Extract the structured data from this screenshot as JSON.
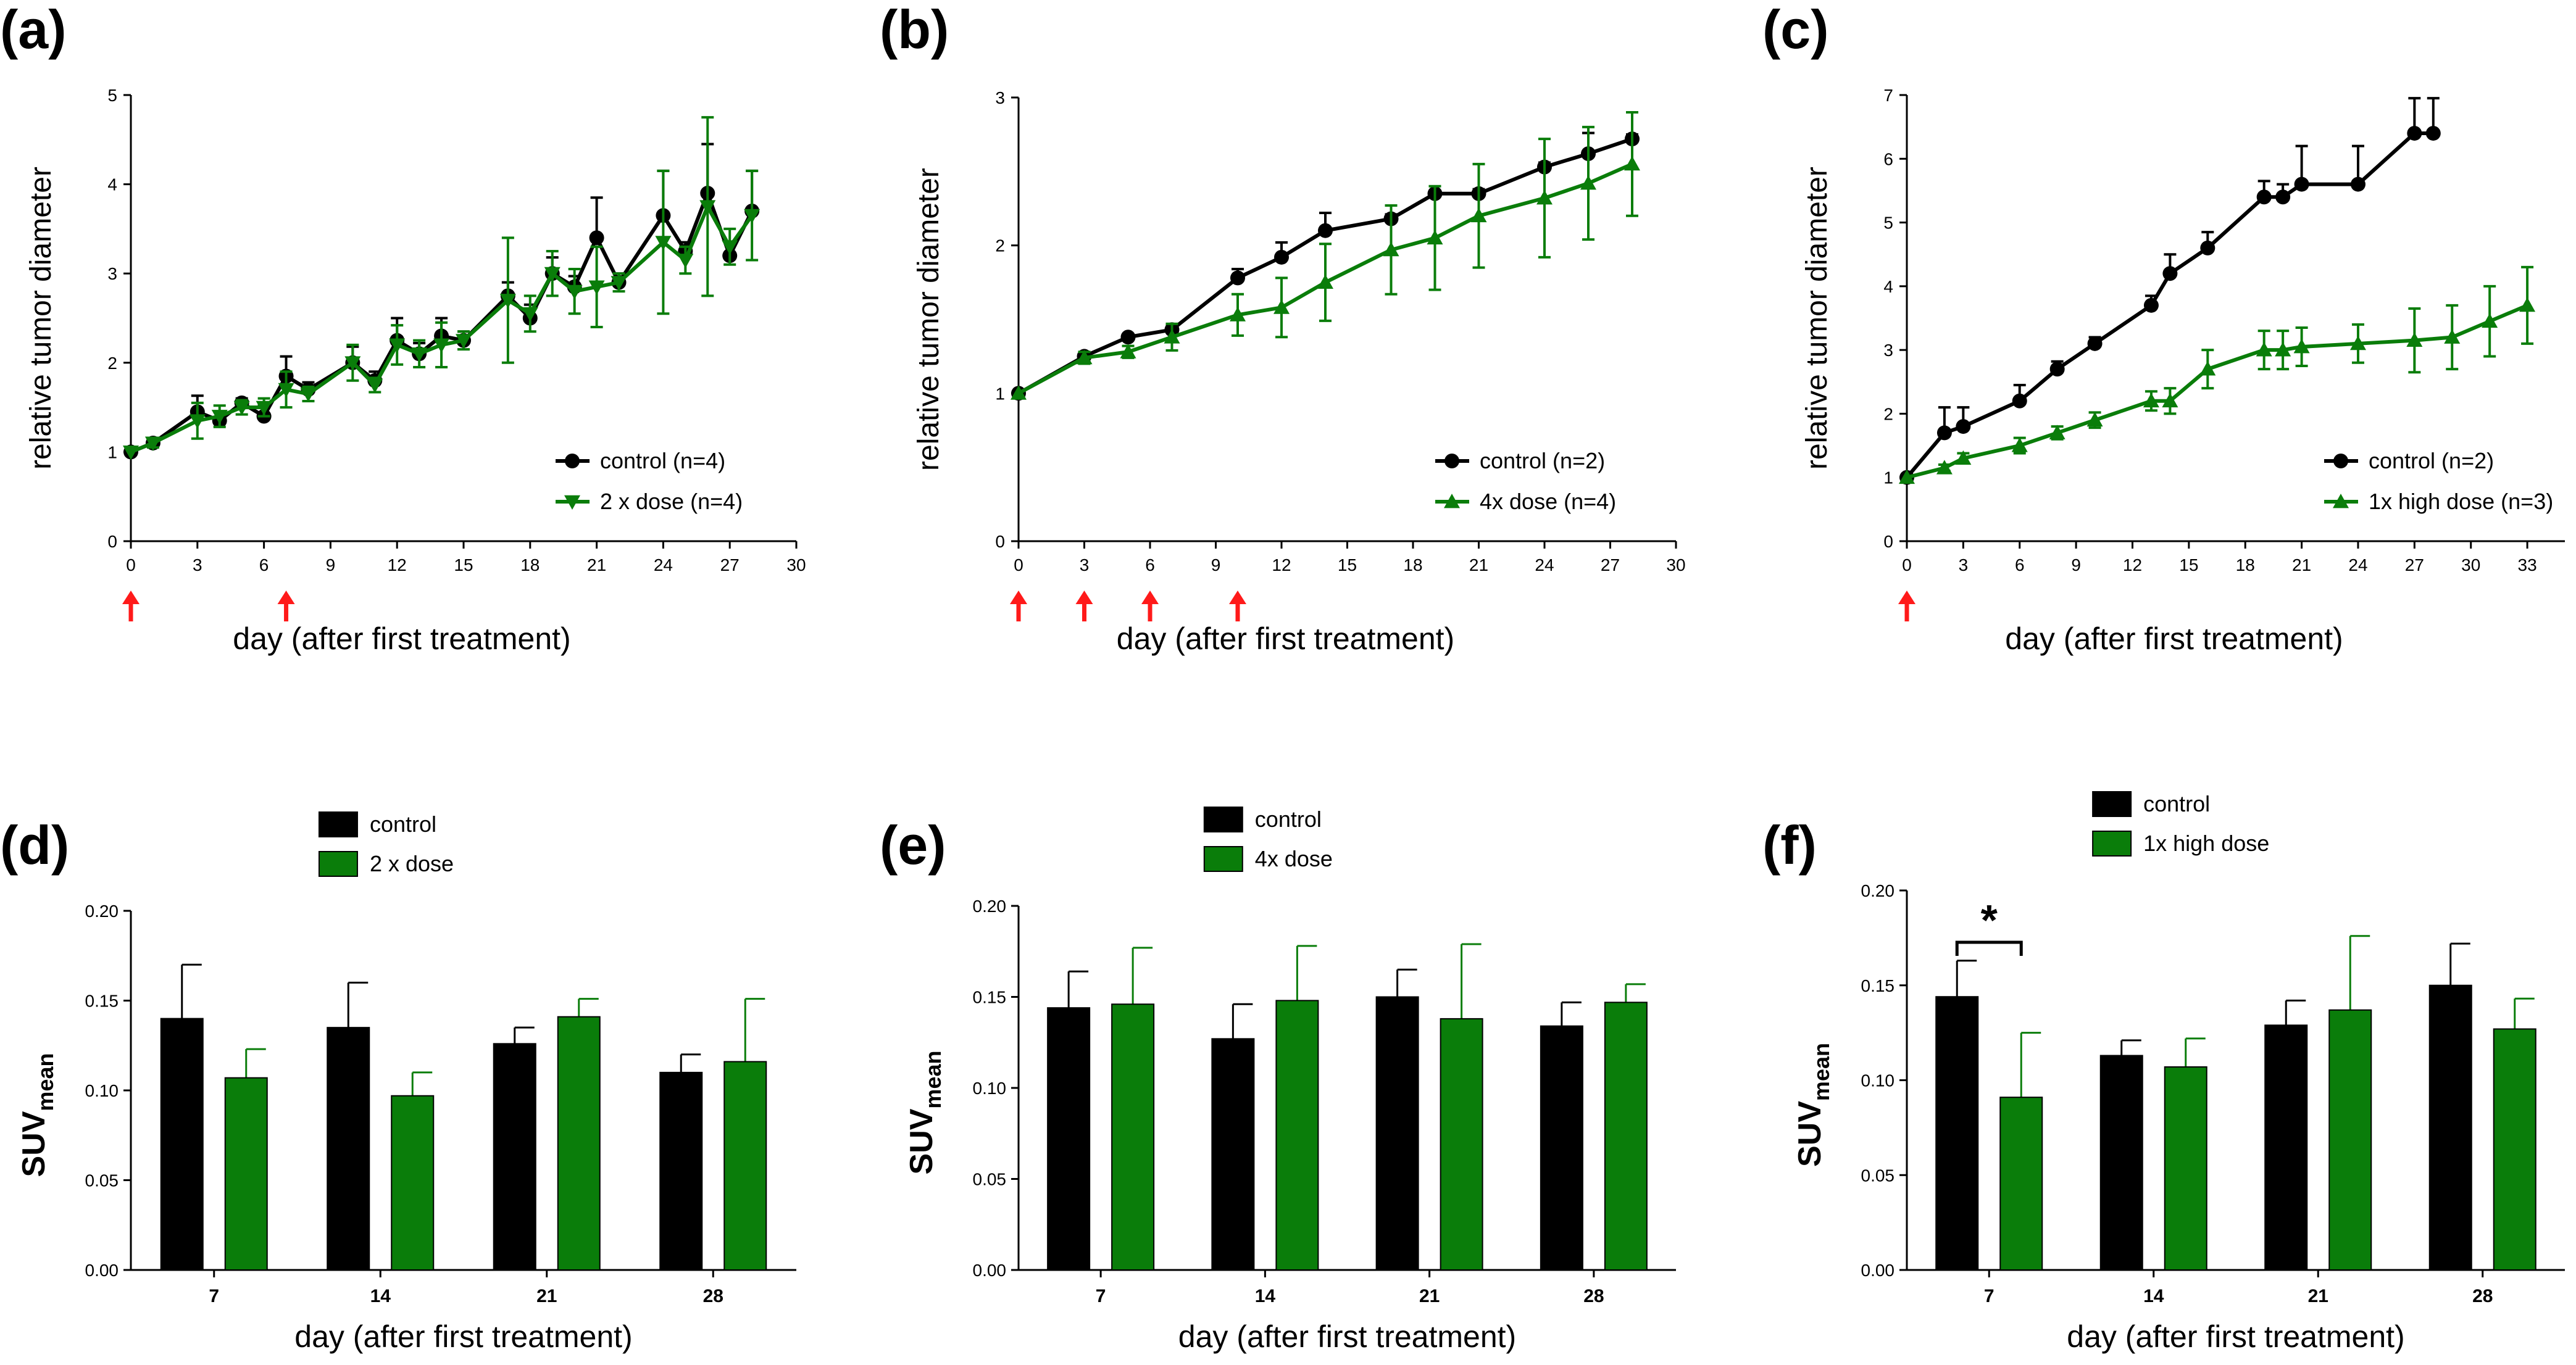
{
  "colors": {
    "control": "#000000",
    "treatment": "#0a7d0a",
    "arrow": "#ff1a1a"
  },
  "chart_data": [
    {
      "id": "a",
      "label": "(a)",
      "type": "line",
      "ylabel": "relative tumor diameter",
      "xlabel": "day (after first treatment)",
      "xlim": [
        0,
        30
      ],
      "ylim": [
        0,
        5
      ],
      "xticks": [
        0,
        3,
        6,
        9,
        12,
        15,
        18,
        21,
        24,
        27,
        30
      ],
      "yticks": [
        0,
        1,
        2,
        3,
        4,
        5
      ],
      "treatment_days": [
        0,
        7
      ],
      "legend_position": "bottom-right",
      "series": [
        {
          "name": "control (n=4)",
          "marker": "circle",
          "color_key": "control",
          "x": [
            0,
            1,
            3,
            4,
            5,
            6,
            7,
            8,
            10,
            11,
            12,
            13,
            14,
            15,
            17,
            18,
            19,
            20,
            21,
            22,
            24,
            25,
            26,
            27,
            28
          ],
          "y": [
            1.0,
            1.1,
            1.45,
            1.35,
            1.55,
            1.4,
            1.85,
            1.7,
            2.0,
            1.8,
            2.25,
            2.1,
            2.3,
            2.25,
            2.75,
            2.5,
            3.0,
            2.85,
            3.4,
            2.9,
            3.65,
            3.25,
            3.9,
            3.2,
            3.7
          ],
          "err": [
            0.0,
            0.03,
            0.18,
            0.1,
            0.05,
            0.12,
            0.22,
            0.08,
            0.18,
            0.1,
            0.25,
            0.12,
            0.2,
            0.1,
            0.15,
            0.15,
            0.18,
            0.12,
            0.45,
            0.1,
            0.5,
            0.1,
            0.55,
            0.15,
            0.45
          ]
        },
        {
          "name": "2 x dose (n=4)",
          "marker": "triangle-down",
          "color_key": "treatment",
          "x": [
            0,
            1,
            3,
            4,
            5,
            6,
            7,
            8,
            10,
            11,
            12,
            13,
            14,
            15,
            17,
            18,
            19,
            20,
            21,
            22,
            24,
            25,
            26,
            27,
            28
          ],
          "y": [
            1.0,
            1.1,
            1.35,
            1.4,
            1.5,
            1.5,
            1.7,
            1.65,
            2.0,
            1.75,
            2.2,
            2.1,
            2.2,
            2.25,
            2.7,
            2.55,
            3.0,
            2.8,
            2.85,
            2.9,
            3.35,
            3.15,
            3.75,
            3.3,
            3.65
          ],
          "err": [
            0.0,
            0.05,
            0.2,
            0.12,
            0.08,
            0.1,
            0.2,
            0.08,
            0.2,
            0.08,
            0.22,
            0.15,
            0.25,
            0.1,
            0.7,
            0.2,
            0.25,
            0.25,
            0.45,
            0.1,
            0.8,
            0.15,
            1.0,
            0.2,
            0.5
          ]
        }
      ]
    },
    {
      "id": "b",
      "label": "(b)",
      "type": "line",
      "ylabel": "relative tumor diameter",
      "xlabel": "day (after first treatment)",
      "xlim": [
        0,
        30
      ],
      "ylim": [
        0,
        3
      ],
      "xticks": [
        0,
        3,
        6,
        9,
        12,
        15,
        18,
        21,
        24,
        27,
        30
      ],
      "yticks": [
        0,
        1,
        2,
        3
      ],
      "treatment_days": [
        0,
        3,
        6,
        10
      ],
      "legend_position": "bottom-right",
      "series": [
        {
          "name": "control (n=2)",
          "marker": "circle",
          "color_key": "control",
          "x": [
            0,
            3,
            5,
            7,
            10,
            12,
            14,
            17,
            19,
            21,
            24,
            26,
            28
          ],
          "y": [
            1.0,
            1.25,
            1.38,
            1.43,
            1.78,
            1.92,
            2.1,
            2.18,
            2.35,
            2.35,
            2.53,
            2.62,
            2.72
          ],
          "err": [
            0.0,
            0.02,
            0.02,
            0.03,
            0.06,
            0.1,
            0.12,
            0.03,
            0.02,
            0.03,
            0.03,
            0.14,
            0.03
          ]
        },
        {
          "name": "4x dose (n=4)",
          "marker": "triangle-up",
          "color_key": "treatment",
          "x": [
            0,
            3,
            5,
            7,
            10,
            12,
            14,
            17,
            19,
            21,
            24,
            26,
            28
          ],
          "y": [
            1.0,
            1.24,
            1.28,
            1.38,
            1.53,
            1.58,
            1.75,
            1.97,
            2.05,
            2.2,
            2.32,
            2.42,
            2.55
          ],
          "err": [
            0.0,
            0.04,
            0.04,
            0.09,
            0.14,
            0.2,
            0.26,
            0.3,
            0.35,
            0.35,
            0.4,
            0.38,
            0.35
          ]
        }
      ]
    },
    {
      "id": "c",
      "label": "(c)",
      "type": "line",
      "ylabel": "relative tumor diameter",
      "xlabel": "day (after first treatment)",
      "xlim": [
        0,
        35
      ],
      "ylim": [
        0,
        7
      ],
      "xticks": [
        0,
        3,
        6,
        9,
        12,
        15,
        18,
        21,
        24,
        27,
        30,
        33
      ],
      "yticks": [
        0,
        1,
        2,
        3,
        4,
        5,
        6,
        7
      ],
      "treatment_days": [
        0
      ],
      "legend_position": "bottom-right",
      "series": [
        {
          "name": "control (n=2)",
          "marker": "circle",
          "color_key": "control",
          "x": [
            0,
            2,
            3,
            6,
            8,
            10,
            13,
            14,
            16,
            19,
            20,
            21,
            24,
            27,
            28
          ],
          "y": [
            1.0,
            1.7,
            1.8,
            2.2,
            2.7,
            3.1,
            3.7,
            4.2,
            4.6,
            5.4,
            5.4,
            5.6,
            5.6,
            6.4,
            6.4
          ],
          "err": [
            0.0,
            0.4,
            0.3,
            0.25,
            0.12,
            0.1,
            0.15,
            0.3,
            0.25,
            0.25,
            0.2,
            0.6,
            0.6,
            0.55,
            0.55
          ]
        },
        {
          "name": "1x high dose (n=3)",
          "marker": "triangle-up",
          "color_key": "treatment",
          "x": [
            0,
            2,
            3,
            6,
            8,
            10,
            13,
            14,
            16,
            19,
            20,
            21,
            24,
            27,
            29,
            31,
            33
          ],
          "y": [
            1.0,
            1.15,
            1.3,
            1.5,
            1.7,
            1.9,
            2.2,
            2.2,
            2.7,
            3.0,
            3.0,
            3.05,
            3.1,
            3.15,
            3.2,
            3.45,
            3.7
          ],
          "err": [
            0.0,
            0.05,
            0.08,
            0.12,
            0.1,
            0.12,
            0.15,
            0.2,
            0.3,
            0.3,
            0.3,
            0.3,
            0.3,
            0.5,
            0.5,
            0.55,
            0.6
          ]
        }
      ]
    },
    {
      "id": "d",
      "label": "(d)",
      "type": "bar",
      "ylabel_main": "SUV",
      "ylabel_sub": "mean",
      "xlabel": "day (after first treatment)",
      "categories": [
        "7",
        "14",
        "21",
        "28"
      ],
      "ylim": [
        0,
        0.2
      ],
      "yticks": [
        "0.00",
        "0.05",
        "0.10",
        "0.15",
        "0.20"
      ],
      "legend_position": "top-center",
      "series": [
        {
          "name": "control",
          "color_key": "control",
          "values": [
            0.14,
            0.135,
            0.126,
            0.11
          ],
          "err": [
            0.03,
            0.025,
            0.009,
            0.01
          ]
        },
        {
          "name": "2 x dose",
          "color_key": "treatment",
          "values": [
            0.107,
            0.097,
            0.141,
            0.116
          ],
          "err": [
            0.016,
            0.013,
            0.01,
            0.035
          ]
        }
      ],
      "annotations": []
    },
    {
      "id": "e",
      "label": "(e)",
      "type": "bar",
      "ylabel_main": "SUV",
      "ylabel_sub": "mean",
      "xlabel": "day (after first treatment)",
      "categories": [
        "7",
        "14",
        "21",
        "28"
      ],
      "ylim": [
        0,
        0.2
      ],
      "yticks": [
        "0.00",
        "0.05",
        "0.10",
        "0.15",
        "0.20"
      ],
      "legend_position": "top-center",
      "series": [
        {
          "name": "control",
          "color_key": "control",
          "values": [
            0.144,
            0.127,
            0.15,
            0.134
          ],
          "err": [
            0.02,
            0.019,
            0.015,
            0.013
          ]
        },
        {
          "name": "4x dose",
          "color_key": "treatment",
          "values": [
            0.146,
            0.148,
            0.138,
            0.147
          ],
          "err": [
            0.031,
            0.03,
            0.041,
            0.01
          ]
        }
      ],
      "annotations": []
    },
    {
      "id": "f",
      "label": "(f)",
      "type": "bar",
      "ylabel_main": "SUV",
      "ylabel_sub": "mean",
      "xlabel": "day (after first treatment)",
      "categories": [
        "7",
        "14",
        "21",
        "28"
      ],
      "ylim": [
        0,
        0.2
      ],
      "yticks": [
        "0.00",
        "0.05",
        "0.10",
        "0.15",
        "0.20"
      ],
      "legend_position": "top-center",
      "series": [
        {
          "name": "control",
          "color_key": "control",
          "values": [
            0.144,
            0.113,
            0.129,
            0.15
          ],
          "err": [
            0.019,
            0.008,
            0.013,
            0.022
          ]
        },
        {
          "name": "1x high dose",
          "color_key": "treatment",
          "values": [
            0.091,
            0.107,
            0.137,
            0.127
          ],
          "err": [
            0.034,
            0.015,
            0.039,
            0.016
          ]
        }
      ],
      "annotations": [
        {
          "text": "*",
          "category_index": 0,
          "type": "significance-bracket"
        }
      ]
    }
  ]
}
